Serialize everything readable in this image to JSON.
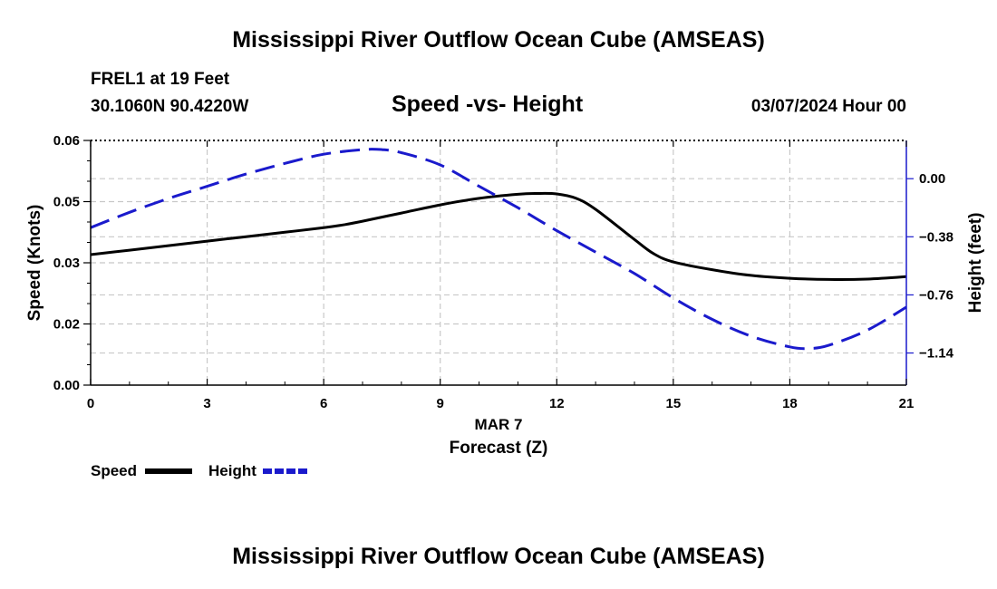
{
  "header": {
    "title": "Mississippi River Outflow Ocean Cube (AMSEAS)",
    "station": "FREL1 at 19 Feet",
    "coords": "30.1060N  90.4220W",
    "subtitle": "Speed -vs- Height",
    "datetime": "03/07/2024 Hour 00"
  },
  "footer": {
    "title": "Mississippi River Outflow Ocean Cube (AMSEAS)"
  },
  "chart_data": {
    "type": "line",
    "title": "Speed -vs- Height",
    "xlabel": "Forecast (Z)",
    "xdate_label": "MAR 7",
    "ylabel": "Speed (Knots)",
    "y2label": "Height (feet)",
    "xlim": [
      0,
      21
    ],
    "ylim": [
      0,
      0.06
    ],
    "y2lim": [
      -1.35,
      0.25
    ],
    "x_ticks": [
      0,
      3,
      6,
      9,
      12,
      15,
      18,
      21
    ],
    "x_tick_labels": [
      "0",
      "3",
      "6",
      "9",
      "12",
      "15",
      "18",
      "21"
    ],
    "y_ticks": [
      0,
      0.015,
      0.03,
      0.045,
      0.06
    ],
    "y_tick_labels": [
      "0.00",
      "0.02",
      "0.03",
      "0.05",
      "0.06"
    ],
    "y2_ticks": [
      0.0,
      -0.38,
      -0.76,
      -1.14
    ],
    "y2_tick_labels": [
      "0.00",
      "−0.38",
      "−0.76",
      "−1.14"
    ],
    "grid": true,
    "series": [
      {
        "name": "Speed",
        "axis": "left",
        "color": "#000000",
        "style": "solid",
        "x": [
          0,
          1,
          2,
          3,
          4,
          5,
          6,
          6.5,
          7,
          8,
          9,
          10,
          11,
          11.5,
          12,
          12.5,
          13,
          14,
          14.5,
          15,
          16,
          17,
          18,
          19,
          20,
          21
        ],
        "y": [
          0.032,
          0.0331,
          0.0342,
          0.0353,
          0.0364,
          0.0375,
          0.0386,
          0.0393,
          0.0402,
          0.0422,
          0.0442,
          0.0458,
          0.0468,
          0.047,
          0.0469,
          0.0458,
          0.0431,
          0.0357,
          0.0322,
          0.0302,
          0.0283,
          0.0269,
          0.0262,
          0.0259,
          0.026,
          0.0266
        ]
      },
      {
        "name": "Height",
        "axis": "right",
        "color": "#1a1acc",
        "style": "dashed",
        "x": [
          0,
          1,
          2,
          3,
          4,
          5,
          6,
          7,
          7.5,
          8,
          9,
          10,
          11,
          12,
          13,
          14,
          15,
          16,
          17,
          18,
          18.5,
          19,
          20,
          21
        ],
        "y": [
          -0.32,
          -0.22,
          -0.13,
          -0.05,
          0.03,
          0.1,
          0.16,
          0.19,
          0.19,
          0.17,
          0.09,
          -0.05,
          -0.19,
          -0.34,
          -0.48,
          -0.62,
          -0.78,
          -0.92,
          -1.03,
          -1.1,
          -1.11,
          -1.09,
          -0.99,
          -0.84
        ]
      }
    ],
    "legend": [
      {
        "label": "Speed",
        "color": "#000000",
        "style": "solid"
      },
      {
        "label": "Height",
        "color": "#1a1acc",
        "style": "dashed"
      }
    ]
  }
}
